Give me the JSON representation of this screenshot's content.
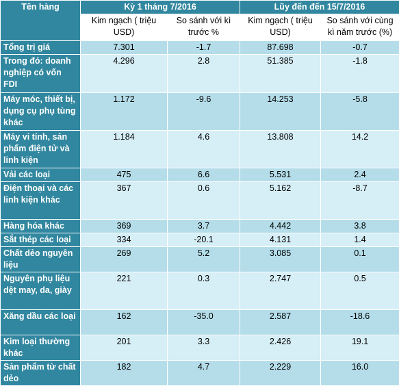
{
  "header": {
    "item_col": "Tên hàng",
    "group1": "Kỳ 1 tháng 7/2016",
    "group2": "Lũy đến đến 15/7/2016",
    "sub1": "Kim ngạch ( triệu USD)",
    "sub2": "So sánh với kì trước %",
    "sub3": "Kim ngạch ( triệu USD)",
    "sub4": "So sánh với cùng kì năm trước (%)"
  },
  "rows": [
    {
      "name": "Tổng trị giá",
      "v1": "7.301",
      "v2": "-1.7",
      "v3": "87.698",
      "v4": "-0.7"
    },
    {
      "name": "Trong đó: doanh nghiệp có vốn FDI",
      "v1": "4.296",
      "v2": "2.8",
      "v3": "51.385",
      "v4": "-1.8"
    },
    {
      "name": "Máy móc, thiết bị, dụng cụ phụ tùng khác",
      "v1": "1.172",
      "v2": "-9.6",
      "v3": "14.253",
      "v4": "-5.8"
    },
    {
      "name": "Máy vi tính, sản phẩm điện tử và linh kiện",
      "v1": "1.184",
      "v2": "4.6",
      "v3": "13.808",
      "v4": "14.2"
    },
    {
      "name": "Vải các loại",
      "v1": "475",
      "v2": "6.6",
      "v3": "5.531",
      "v4": "2.4"
    },
    {
      "name": "Điện thoại và các linh kiện khác",
      "v1": "367",
      "v2": "0.6",
      "v3": "5.162",
      "v4": "-8.7"
    },
    {
      "name": "Hàng hóa khác",
      "v1": "369",
      "v2": "3.7",
      "v3": "4.442",
      "v4": "3.8"
    },
    {
      "name": "Sắt thép các loại",
      "v1": "334",
      "v2": "-20.1",
      "v3": "4.131",
      "v4": "1.4"
    },
    {
      "name": "Chất dẻo nguyên liệu",
      "v1": "269",
      "v2": "5.2",
      "v3": "3.085",
      "v4": "0.1"
    },
    {
      "name": "Nguyên phụ liệu dệt may, da, giày",
      "v1": "221",
      "v2": "0.3",
      "v3": "2.747",
      "v4": "0.5"
    },
    {
      "name": "Xăng dầu các loại",
      "v1": "162",
      "v2": "-35.0",
      "v3": "2.587",
      "v4": "-18.6"
    },
    {
      "name": "Kim loại thường khác",
      "v1": "201",
      "v2": "3.3",
      "v3": "2.426",
      "v4": "19.1"
    },
    {
      "name": "Sản phẩm từ chất dẻo",
      "v1": "182",
      "v2": "4.7",
      "v3": "2.229",
      "v4": "16.0"
    }
  ]
}
